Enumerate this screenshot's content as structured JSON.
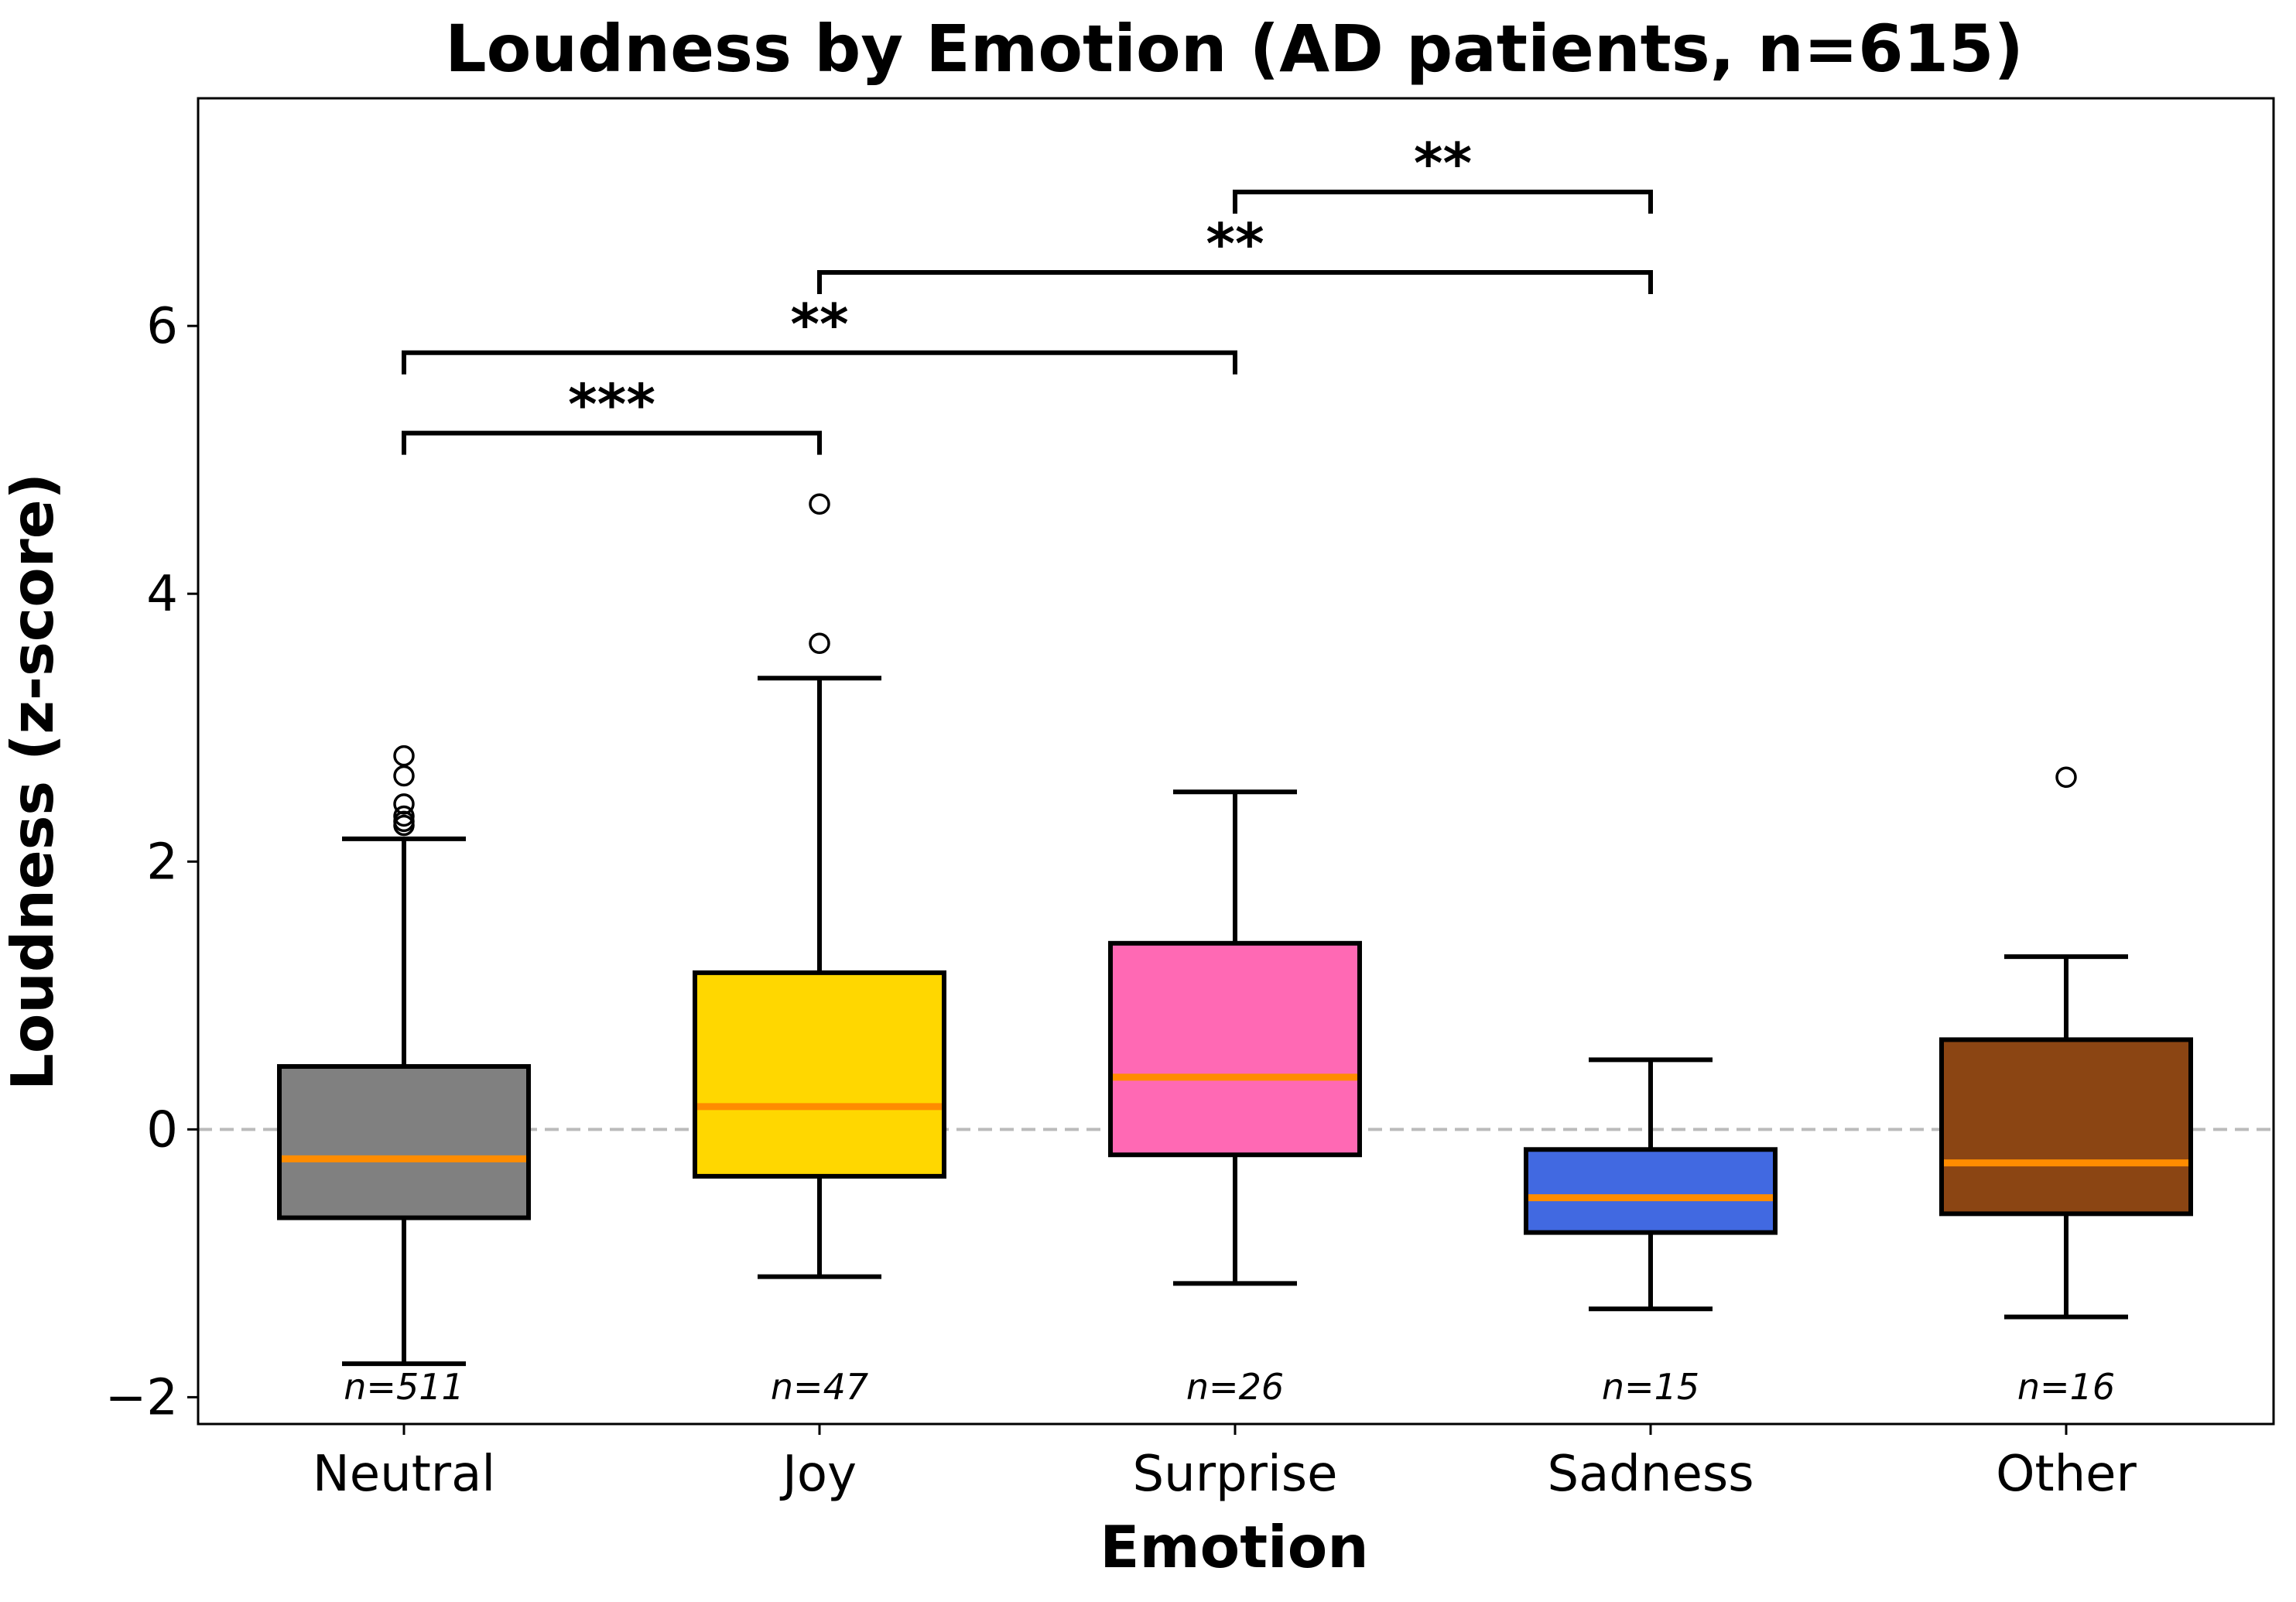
{
  "chart_data": {
    "type": "box",
    "title": "Loudness by Emotion (AD patients, n=615)",
    "xlabel": "Emotion",
    "ylabel": "Loudness (z-score)",
    "ylim": [
      -2.2,
      7.7
    ],
    "yticks": [
      -2,
      0,
      2,
      4,
      6
    ],
    "ytick_labels": [
      "−2",
      "0",
      "2",
      "4",
      "6"
    ],
    "reference_line": 0,
    "median_color": "#ff8c00",
    "reference_line_color": "#bbbbbb",
    "categories": [
      "Neutral",
      "Joy",
      "Surprise",
      "Sadness",
      "Other"
    ],
    "boxes": [
      {
        "category": "Neutral",
        "color": "#808080",
        "whisker_low": -1.75,
        "q1": -0.66,
        "median": -0.22,
        "q3": 0.47,
        "whisker_high": 2.17,
        "outliers": [
          2.27,
          2.3,
          2.34,
          2.43,
          2.64,
          2.79
        ],
        "n_label": "n=511"
      },
      {
        "category": "Joy",
        "color": "#ffd700",
        "whisker_low": -1.1,
        "q1": -0.35,
        "median": 0.17,
        "q3": 1.17,
        "whisker_high": 3.37,
        "outliers": [
          3.63,
          4.67
        ],
        "n_label": "n=47"
      },
      {
        "category": "Surprise",
        "color": "#ff69b4",
        "whisker_low": -1.15,
        "q1": -0.19,
        "median": 0.39,
        "q3": 1.39,
        "whisker_high": 2.52,
        "outliers": [],
        "n_label": "n=26"
      },
      {
        "category": "Sadness",
        "color": "#4169e1",
        "whisker_low": -1.34,
        "q1": -0.77,
        "median": -0.51,
        "q3": -0.15,
        "whisker_high": 0.52,
        "outliers": [],
        "n_label": "n=15"
      },
      {
        "category": "Other",
        "color": "#8b4513",
        "whisker_low": -1.4,
        "q1": -0.63,
        "median": -0.25,
        "q3": 0.67,
        "whisker_high": 1.29,
        "outliers": [
          2.63
        ],
        "n_label": "n=16"
      }
    ],
    "significance": [
      {
        "from": "Neutral",
        "to": "Joy",
        "y": 5.2,
        "label": "***"
      },
      {
        "from": "Neutral",
        "to": "Surprise",
        "y": 5.8,
        "label": "**"
      },
      {
        "from": "Joy",
        "to": "Sadness",
        "y": 6.4,
        "label": "**"
      },
      {
        "from": "Surprise",
        "to": "Sadness",
        "y": 7.0,
        "label": "**"
      }
    ]
  }
}
